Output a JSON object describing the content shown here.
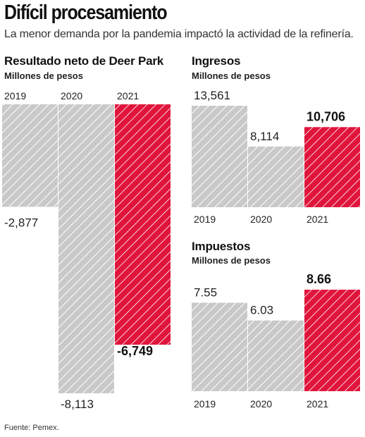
{
  "title": "Difícil procesamiento",
  "subtitle": "La menor demanda por la pandemia impactó la actividad de la refinería.",
  "source": "Fuente: Pemex.",
  "colors": {
    "base": "#c9c9c9",
    "highlight": "#e0153c",
    "stripe": "#ffffff"
  },
  "chart_data": [
    {
      "type": "bar",
      "title": "Resultado neto de Deer Park",
      "ylabel": "Millones de pesos",
      "categories": [
        "2019",
        "2020",
        "2021"
      ],
      "values": [
        -2877,
        -8113,
        -6749
      ],
      "value_labels": [
        "-2,877",
        "-8,113",
        "-6,749"
      ],
      "highlight_index": 2,
      "ylim": [
        -8113,
        0
      ],
      "grid": false,
      "legend": "none"
    },
    {
      "type": "bar",
      "title": "Ingresos",
      "ylabel": "Millones de pesos",
      "categories": [
        "2019",
        "2020",
        "2021"
      ],
      "values": [
        13561,
        8114,
        10706
      ],
      "value_labels": [
        "13,561",
        "8,114",
        "10,706"
      ],
      "highlight_index": 2,
      "ylim": [
        0,
        13561
      ],
      "grid": false,
      "legend": "none"
    },
    {
      "type": "bar",
      "title": "Impuestos",
      "ylabel": "Millones de pesos",
      "categories": [
        "2019",
        "2020",
        "2021"
      ],
      "values": [
        7.55,
        6.03,
        8.66
      ],
      "value_labels": [
        "7.55",
        "6.03",
        "8.66"
      ],
      "highlight_index": 2,
      "ylim": [
        0,
        8.66
      ],
      "grid": false,
      "legend": "none"
    }
  ]
}
